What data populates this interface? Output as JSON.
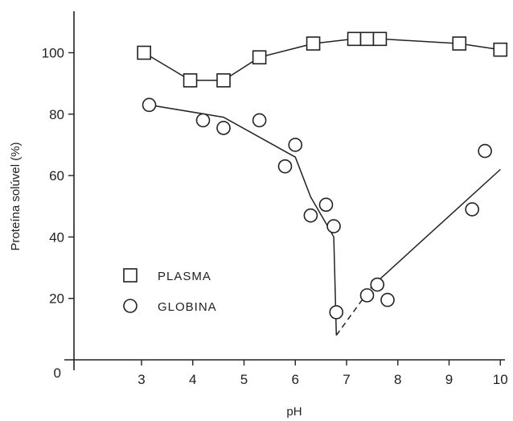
{
  "chart_data": {
    "type": "scatter",
    "xlabel": "pH",
    "ylabel": "Proteína solúvel (%)",
    "xlim": [
      1.3,
      10.0
    ],
    "ylim": [
      0,
      112
    ],
    "x_ticks": [
      "3",
      "4",
      "5",
      "6",
      "7",
      "8",
      "9",
      "10"
    ],
    "y_ticks": [
      "20",
      "40",
      "60",
      "80",
      "100"
    ],
    "origin_label": "0",
    "grid": false,
    "legend_position": "lower-left",
    "series": [
      {
        "name": "PLASMA",
        "marker": "square",
        "x": [
          3.05,
          3.95,
          4.6,
          5.3,
          6.35,
          7.15,
          7.4,
          7.65,
          9.2,
          10.0
        ],
        "y": [
          100,
          91,
          91,
          98.5,
          103,
          104.5,
          104.5,
          104.5,
          103,
          101
        ]
      },
      {
        "name": "GLOBINA",
        "marker": "circle",
        "x": [
          3.15,
          4.2,
          4.6,
          5.3,
          5.8,
          6.0,
          6.3,
          6.6,
          6.75,
          6.8,
          7.4,
          7.6,
          7.8,
          9.45,
          9.7
        ],
        "y": [
          83,
          78,
          75.5,
          78,
          63,
          70,
          47,
          50.5,
          43.5,
          15.5,
          21,
          24.5,
          19.5,
          49,
          68
        ]
      }
    ],
    "fit_lines": [
      {
        "series": "PLASMA",
        "style": "solid",
        "x": [
          3.05,
          3.95,
          4.6,
          5.3,
          6.35,
          7.15,
          7.65,
          9.2,
          10.0
        ],
        "y": [
          100,
          91,
          91,
          98.5,
          103,
          104.5,
          104.5,
          103,
          101
        ]
      },
      {
        "series": "GLOBINA",
        "style": "solid",
        "x": [
          3.15,
          4.6,
          6.0,
          6.3,
          6.65,
          6.75,
          6.8
        ],
        "y": [
          83,
          79,
          66,
          53,
          43,
          40,
          8
        ]
      },
      {
        "series": "GLOBINA",
        "style": "dashed",
        "x": [
          6.8,
          7.5
        ],
        "y": [
          8,
          24
        ]
      },
      {
        "series": "GLOBINA",
        "style": "solid",
        "x": [
          7.5,
          10.0
        ],
        "y": [
          24,
          62
        ]
      }
    ]
  }
}
